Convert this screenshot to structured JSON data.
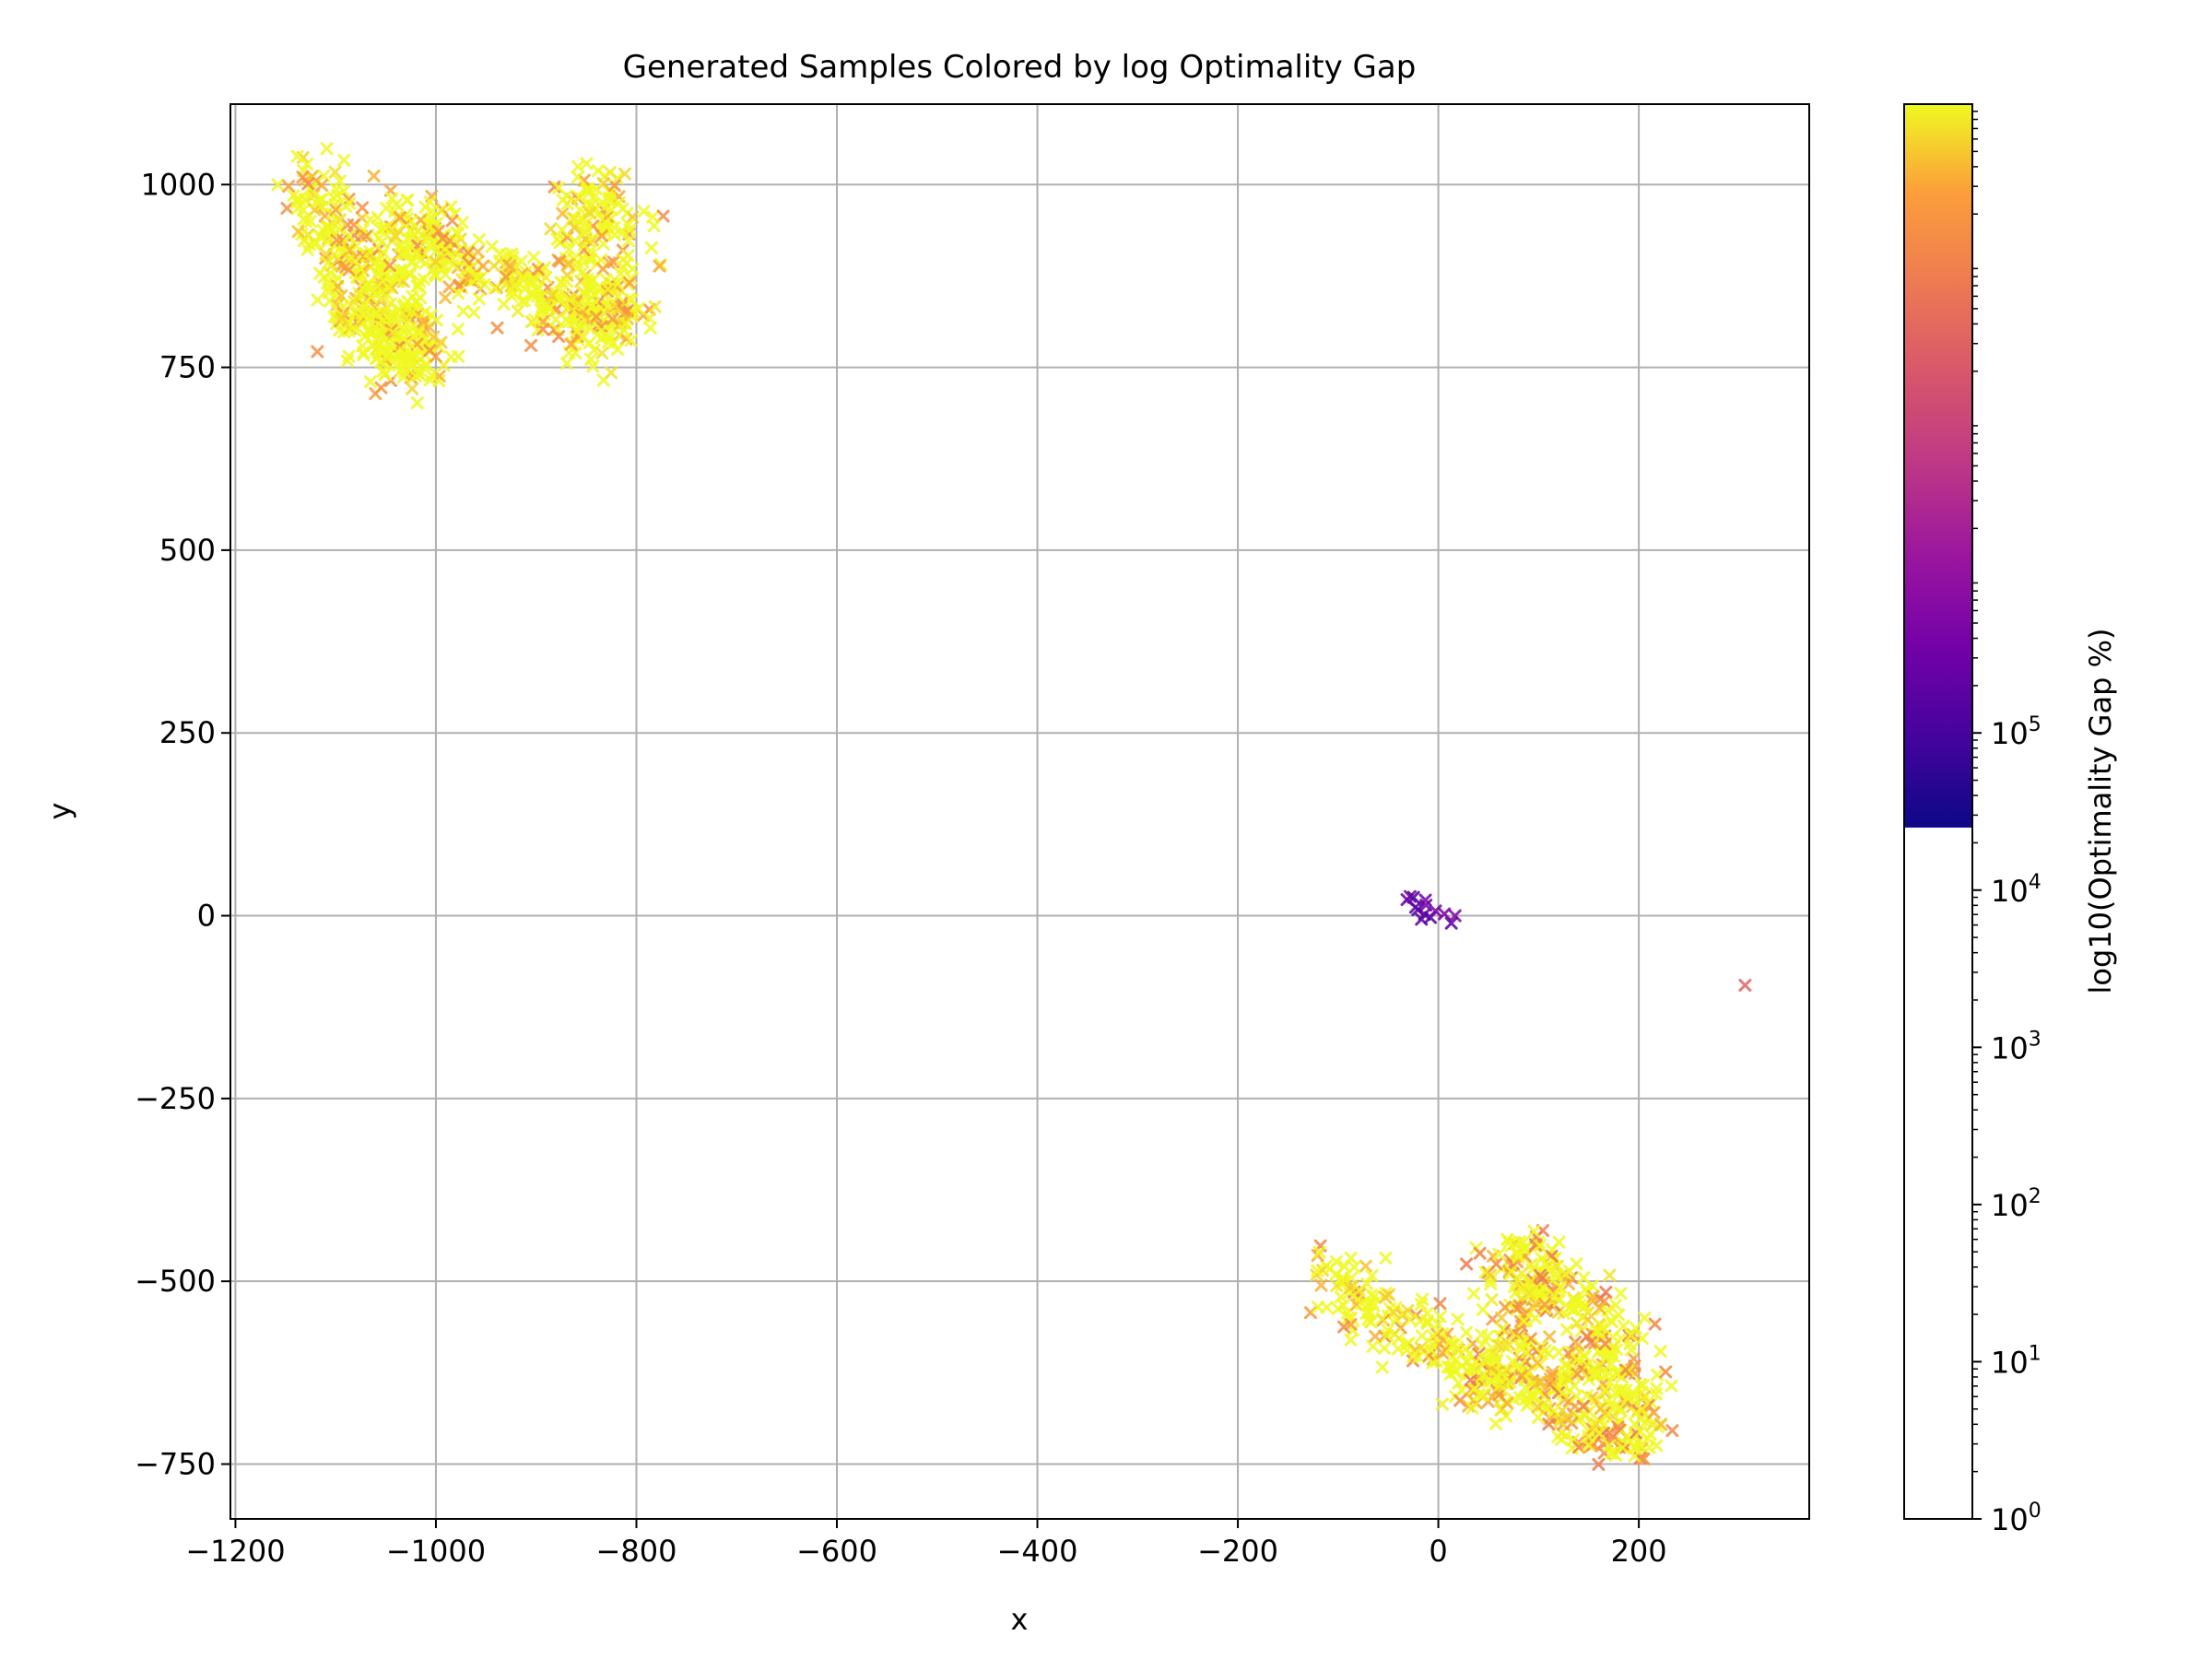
{
  "chart_data": {
    "type": "scatter",
    "title": "Generated Samples Colored by log Optimality Gap",
    "xlabel": "x",
    "ylabel": "y",
    "xlim": [
      -1205,
      370
    ],
    "ylim": [
      -825,
      1110
    ],
    "xticks": [
      -1200,
      -1000,
      -800,
      -600,
      -400,
      -200,
      0,
      200
    ],
    "xtick_labels": [
      "−1200",
      "−1000",
      "−800",
      "−600",
      "−400",
      "−200",
      "0",
      "200"
    ],
    "yticks": [
      -750,
      -500,
      -250,
      0,
      250,
      500,
      750,
      1000
    ],
    "ytick_labels": [
      "−750",
      "−500",
      "−250",
      "0",
      "250",
      "500",
      "750",
      "1000"
    ],
    "grid": true,
    "marker": "x",
    "colormap": "plasma",
    "colorbar": {
      "label": "log10(Optimality Gap %)",
      "scale": "log",
      "range": [
        1,
        1000000000
      ],
      "filled_from": 25000,
      "ticks": [
        1,
        10,
        100,
        1000,
        10000,
        100000
      ],
      "tick_base": "10",
      "tick_exponents": [
        "0",
        "1",
        "2",
        "3",
        "4",
        "5"
      ],
      "colors": [
        "#0d0887",
        "#6a00a8",
        "#b12a90",
        "#e16462",
        "#fca636",
        "#f0f921"
      ]
    },
    "clusters": [
      {
        "region": "top-left",
        "path": [
          [
            -1130,
            1015
          ],
          [
            -1105,
            950
          ],
          [
            -1090,
            880
          ],
          [
            -1070,
            820
          ],
          [
            -1040,
            765
          ],
          [
            -1020,
            745
          ],
          [
            -1030,
            790
          ],
          [
            -1045,
            860
          ],
          [
            -1035,
            935
          ],
          [
            -1010,
            955
          ],
          [
            -1000,
            905
          ],
          [
            -960,
            880
          ],
          [
            -910,
            860
          ],
          [
            -880,
            835
          ],
          [
            -850,
            810
          ],
          [
            -825,
            795
          ],
          [
            -835,
            860
          ],
          [
            -840,
            930
          ],
          [
            -845,
            1015
          ]
        ],
        "spread": 22,
        "count": 900,
        "log_gap_range": [
          3.8,
          6.8
        ]
      },
      {
        "region": "bottom-right",
        "path": [
          [
            -110,
            -485
          ],
          [
            -70,
            -540
          ],
          [
            -30,
            -570
          ],
          [
            10,
            -600
          ],
          [
            40,
            -630
          ],
          [
            70,
            -660
          ],
          [
            80,
            -590
          ],
          [
            80,
            -510
          ],
          [
            80,
            -450
          ],
          [
            120,
            -510
          ],
          [
            160,
            -540
          ],
          [
            180,
            -600
          ],
          [
            185,
            -660
          ],
          [
            195,
            -730
          ],
          [
            150,
            -705
          ],
          [
            110,
            -670
          ],
          [
            130,
            -600
          ]
        ],
        "spread": 20,
        "count": 700,
        "log_gap_range": [
          3.5,
          6.5
        ]
      },
      {
        "region": "center",
        "path": [
          [
            -35,
            15
          ],
          [
            -25,
            22
          ],
          [
            -15,
            25
          ],
          [
            -5,
            -10
          ],
          [
            5,
            -8
          ],
          [
            15,
            0
          ]
        ],
        "spread": 5,
        "count": 14,
        "log_gap_range": [
          0.5,
          1.4
        ]
      }
    ],
    "points": [
      {
        "x": 306,
        "y": -95,
        "log_gap": 3.2
      }
    ]
  }
}
